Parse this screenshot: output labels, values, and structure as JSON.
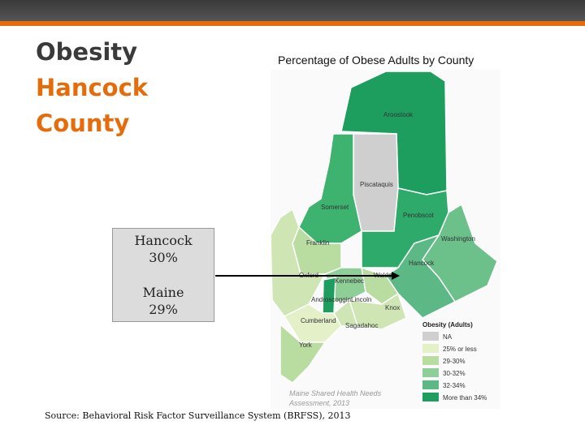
{
  "header": {
    "title_lines": [
      "Obesity",
      "Hancock",
      "County"
    ]
  },
  "map": {
    "title": "Percentage of Obese Adults by County",
    "labels": [
      "Aroostook",
      "Piscataquis",
      "Somerset",
      "Penobscot",
      "Franklin",
      "Washington",
      "Hancock",
      "Oxford",
      "Kennebec",
      "Waldo",
      "Androscoggin",
      "Lincoln",
      "Knox",
      "Cumberland",
      "Sagadahoc",
      "York"
    ],
    "legend": {
      "title": "Obesity (Adults)",
      "items": [
        "NA",
        "25% or less",
        "29-30%",
        "30-32%",
        "32-34%",
        "More than 34%"
      ]
    },
    "credit": [
      "Maine Shared Health Needs",
      "Assessment, 2013"
    ]
  },
  "callout": [
    {
      "name": "Hancock",
      "value": "30%"
    },
    {
      "name": "Maine",
      "value": "29%"
    }
  ],
  "footer": {
    "source": "Source: Behavioral Risk Factor Surveillance System (BRFSS), 2013"
  }
}
